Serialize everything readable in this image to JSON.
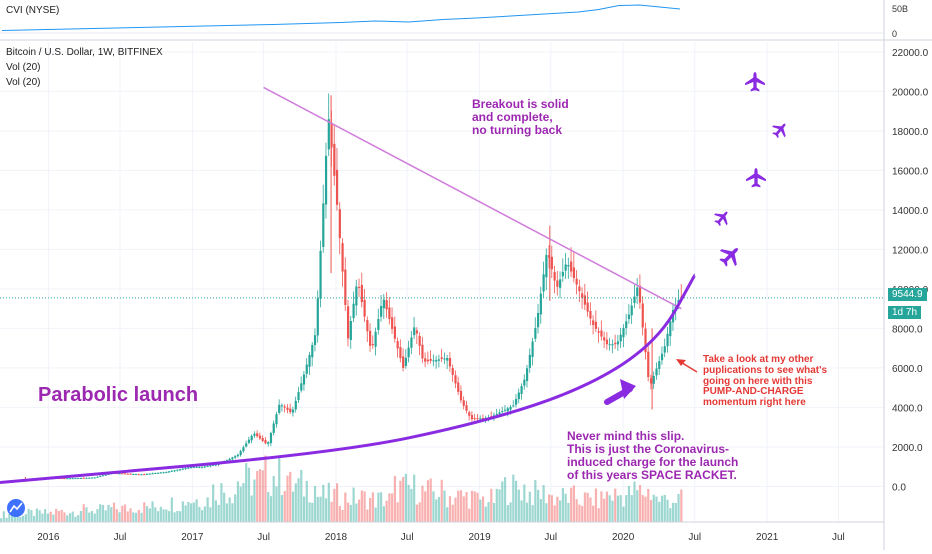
{
  "panel_top": {
    "label": "CVI (NYSE)",
    "right_ticks": [
      "50B",
      "0"
    ]
  },
  "legend": {
    "title": "Bitcoin / U.S. Dollar, 1W, BITFINEX",
    "vol1": "Vol (20)",
    "vol2": "Vol (20)"
  },
  "price_labels": {
    "last_price": "9544.9",
    "countdown": "1d 7h"
  },
  "annotations": {
    "parabolic": "Parabolic launch",
    "breakout": "Breakout is solid\nand complete,\nno turning back",
    "take_look": "Take a look at my other\npuplications to see what's\ngoing on here with this\nPUMP-AND-CHARGE\nmomentum right here",
    "never_mind": "Never mind this slip.\nThis is just the Coronavirus-\ninduced charge for the launch\nof this years SPACE RACKET."
  },
  "colors": {
    "up": "#26a69a",
    "down": "#ef5350",
    "parabola": "#8a2be2",
    "trendline": "#d07ddb",
    "annotation_purple": "#9c27b0",
    "annotation_red": "#e53935",
    "cvi_line": "#2196f3",
    "price_box": "#26a69a"
  },
  "icons": [
    "airplane-icon",
    "tradingview-logo-icon"
  ],
  "chart_data": {
    "type": "candlestick",
    "title": "Bitcoin / U.S. Dollar, 1W, BITFINEX",
    "y_ticks": [
      0,
      2000,
      4000,
      6000,
      8000,
      10000,
      12000,
      14000,
      16000,
      18000,
      20000,
      22000
    ],
    "y_tick_labels": [
      "0.0",
      "2000.0",
      "4000.0",
      "6000.0",
      "8000.0",
      "10000.0",
      "12000.0",
      "14000.0",
      "16000.0",
      "18000.0",
      "20000.0",
      "22000.0"
    ],
    "ylim": [
      -1800,
      22500
    ],
    "x_ticks": [
      "2016",
      "Jul",
      "2017",
      "Jul",
      "2018",
      "Jul",
      "2019",
      "Jul",
      "2020",
      "Jul",
      "2021",
      "Jul"
    ],
    "xlim": [
      "2015-08-31",
      "2021-10-25"
    ],
    "last_price": 9544.9,
    "close_series": [
      [
        "2015-09-01",
        240
      ],
      [
        "2015-11-01",
        330
      ],
      [
        "2016-01-01",
        430
      ],
      [
        "2016-03-01",
        415
      ],
      [
        "2016-05-01",
        450
      ],
      [
        "2016-06-15",
        680
      ],
      [
        "2016-09-01",
        610
      ],
      [
        "2016-11-01",
        740
      ],
      [
        "2017-01-01",
        980
      ],
      [
        "2017-02-01",
        1000
      ],
      [
        "2017-03-15",
        1150
      ],
      [
        "2017-05-01",
        1600
      ],
      [
        "2017-06-10",
        2700
      ],
      [
        "2017-07-15",
        2100
      ],
      [
        "2017-08-15",
        4200
      ],
      [
        "2017-09-15",
        3700
      ],
      [
        "2017-10-15",
        5600
      ],
      [
        "2017-11-15",
        7800
      ],
      [
        "2017-12-17",
        18800
      ],
      [
        "2018-01-07",
        14500
      ],
      [
        "2018-02-05",
        7500
      ],
      [
        "2018-03-01",
        10500
      ],
      [
        "2018-04-05",
        6800
      ],
      [
        "2018-05-05",
        9600
      ],
      [
        "2018-06-25",
        6000
      ],
      [
        "2018-07-25",
        8200
      ],
      [
        "2018-08-15",
        6300
      ],
      [
        "2018-10-15",
        6500
      ],
      [
        "2018-11-20",
        4300
      ],
      [
        "2018-12-15",
        3400
      ],
      [
        "2019-02-01",
        3500
      ],
      [
        "2019-04-01",
        4100
      ],
      [
        "2019-05-01",
        5500
      ],
      [
        "2019-06-01",
        8500
      ],
      [
        "2019-06-26",
        12000
      ],
      [
        "2019-07-20",
        10000
      ],
      [
        "2019-08-15",
        11400
      ],
      [
        "2019-09-20",
        9700
      ],
      [
        "2019-10-20",
        8200
      ],
      [
        "2019-11-25",
        7200
      ],
      [
        "2019-12-20",
        7200
      ],
      [
        "2020-01-20",
        8700
      ],
      [
        "2020-02-12",
        10200
      ],
      [
        "2020-03-12",
        5000
      ],
      [
        "2020-04-20",
        7100
      ],
      [
        "2020-05-10",
        8900
      ],
      [
        "2020-05-28",
        9544.9
      ]
    ],
    "wick_highlights": [
      {
        "date": "2017-12-17",
        "high": 19800,
        "low": 10800
      },
      {
        "date": "2019-06-26",
        "high": 13200,
        "low": 9400
      },
      {
        "date": "2020-03-12",
        "high": 8000,
        "low": 3900
      },
      {
        "date": "2015-11-01",
        "high": 480,
        "low": 240
      }
    ],
    "trendline": [
      [
        "2017-07-01",
        20200
      ],
      [
        "2020-05-28",
        9000
      ]
    ],
    "parabola": [
      [
        "2015-08-31",
        200
      ],
      [
        "2018-01-01",
        1700
      ],
      [
        "2019-01-01",
        3200
      ],
      [
        "2019-10-01",
        5000
      ],
      [
        "2020-04-01",
        7400
      ],
      [
        "2020-07-01",
        10700
      ]
    ],
    "volume": {
      "unit": "relative",
      "values": [
        0.1,
        0.12,
        0.14,
        0.16,
        0.18,
        0.2,
        0.25,
        0.3,
        0.42,
        0.55,
        0.62,
        0.48,
        0.35,
        0.32,
        0.3,
        0.45,
        0.4,
        0.34,
        0.3,
        0.45,
        0.38,
        0.33,
        0.3,
        0.36,
        0.4,
        0.3
      ]
    },
    "cvi": {
      "unit": "B",
      "ylim": [
        -6,
        62
      ],
      "points": [
        [
          0,
          5
        ],
        [
          0.1,
          8
        ],
        [
          0.2,
          11
        ],
        [
          0.3,
          14
        ],
        [
          0.4,
          17
        ],
        [
          0.5,
          21
        ],
        [
          0.55,
          24
        ],
        [
          0.6,
          22
        ],
        [
          0.65,
          27
        ],
        [
          0.7,
          30
        ],
        [
          0.75,
          34
        ],
        [
          0.8,
          38
        ],
        [
          0.85,
          42
        ],
        [
          0.88,
          47
        ],
        [
          0.91,
          55
        ],
        [
          0.94,
          56
        ],
        [
          0.97,
          52
        ],
        [
          1.0,
          48
        ]
      ]
    }
  }
}
